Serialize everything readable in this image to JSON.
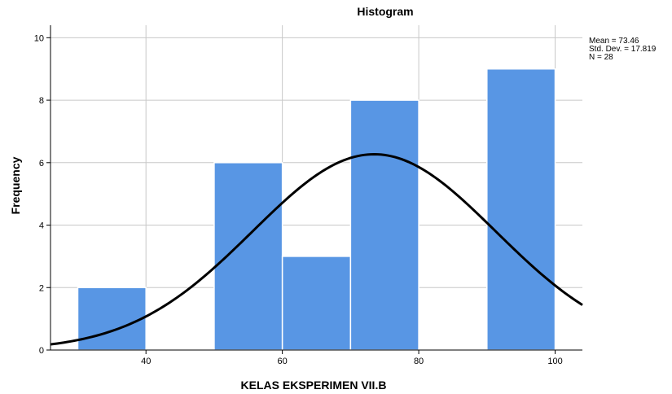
{
  "chart_data": {
    "type": "bar",
    "title": "Histogram",
    "xlabel": "KELAS EKSPERIMEN VII.B",
    "ylabel": "Frequency",
    "xlim": [
      26,
      104
    ],
    "ylim": [
      0,
      10.4
    ],
    "x_ticks": [
      "40",
      "60",
      "80",
      "100"
    ],
    "y_ticks": [
      "0",
      "2",
      "4",
      "6",
      "8",
      "10"
    ],
    "bins": [
      {
        "start": 30,
        "end": 40,
        "value": 2
      },
      {
        "start": 50,
        "end": 60,
        "value": 6
      },
      {
        "start": 60,
        "end": 70,
        "value": 3
      },
      {
        "start": 70,
        "end": 80,
        "value": 8
      },
      {
        "start": 90,
        "end": 100,
        "value": 9
      }
    ],
    "normal_curve": {
      "mean": 73.46,
      "std": 17.819,
      "n": 28,
      "bin_width": 10
    },
    "grid": true,
    "colors": {
      "bar": "#5896e4",
      "bar_edge": "#ffffff",
      "curve": "#000000",
      "grid": "#c8c8c8",
      "axis": "#000000"
    }
  },
  "stats": {
    "mean": "Mean = 73.46",
    "std": "Std. Dev. = 17.819",
    "n": "N = 28"
  }
}
